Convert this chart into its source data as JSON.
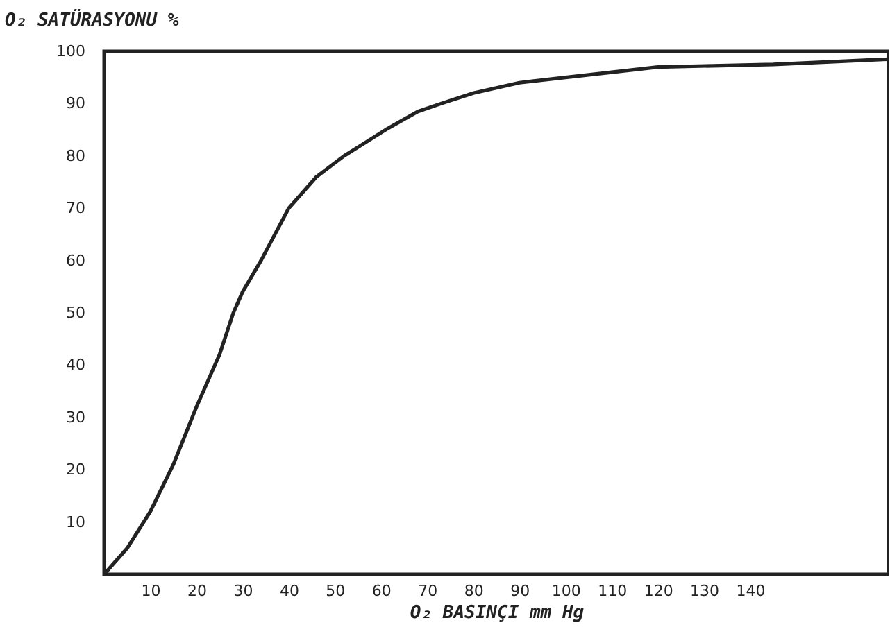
{
  "chart_data": {
    "type": "line",
    "xlabel": "O₂ BASINÇI mm Hg",
    "ylabel": "O₂ SATÜRASYONU %",
    "x": [
      0,
      5,
      10,
      15,
      20,
      25,
      28,
      30,
      34,
      40,
      46,
      52,
      61,
      68,
      73,
      80,
      90,
      100,
      120,
      145,
      170
    ],
    "series": [
      {
        "color": "#222222",
        "values": [
          0,
          5,
          12,
          21,
          32,
          42,
          50,
          54,
          60,
          70,
          76,
          80,
          85,
          88.5,
          90,
          92,
          94,
          95,
          97,
          97.5,
          98.5
        ]
      }
    ],
    "xlim": [
      0,
      170
    ],
    "ylim": [
      0,
      100
    ],
    "xticks": [
      10,
      20,
      30,
      40,
      50,
      60,
      70,
      80,
      90,
      100,
      110,
      120,
      130,
      140
    ],
    "yticks": [
      10,
      20,
      30,
      40,
      50,
      60,
      70,
      80,
      90,
      100
    ],
    "grid": false,
    "marker": "none",
    "line_style": "solid"
  }
}
